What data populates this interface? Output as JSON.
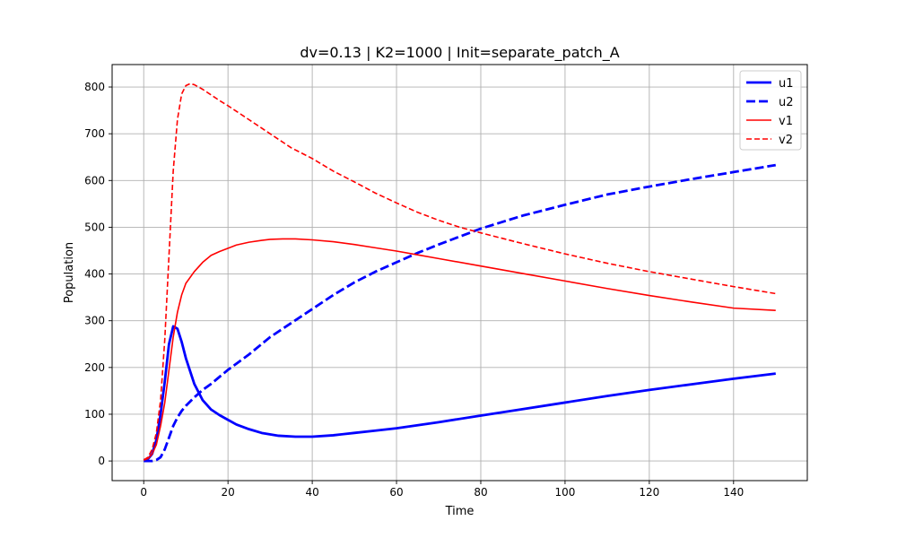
{
  "chart_data": {
    "type": "line",
    "title": "dv=0.13 | K2=1000 | Init=separate_patch_A",
    "xlabel": "Time",
    "ylabel": "Population",
    "xlim": [
      -7.5,
      157.5
    ],
    "ylim": [
      -42,
      848
    ],
    "xticks": [
      0,
      20,
      40,
      60,
      80,
      100,
      120,
      140
    ],
    "yticks": [
      0,
      100,
      200,
      300,
      400,
      500,
      600,
      700,
      800
    ],
    "grid": true,
    "legend_position": "top-right",
    "series": [
      {
        "name": "u1",
        "color": "#0000ff",
        "linestyle": "solid",
        "linewidth": "thick",
        "points": [
          [
            0,
            2
          ],
          [
            1,
            4
          ],
          [
            2,
            15
          ],
          [
            3,
            45
          ],
          [
            4,
            100
          ],
          [
            5,
            170
          ],
          [
            6,
            250
          ],
          [
            7,
            288
          ],
          [
            8,
            283
          ],
          [
            9,
            255
          ],
          [
            10,
            220
          ],
          [
            12,
            165
          ],
          [
            14,
            130
          ],
          [
            16,
            110
          ],
          [
            18,
            98
          ],
          [
            20,
            88
          ],
          [
            22,
            78
          ],
          [
            25,
            68
          ],
          [
            28,
            60
          ],
          [
            32,
            54
          ],
          [
            36,
            52
          ],
          [
            40,
            52
          ],
          [
            45,
            55
          ],
          [
            50,
            60
          ],
          [
            55,
            65
          ],
          [
            60,
            70
          ],
          [
            70,
            83
          ],
          [
            80,
            97
          ],
          [
            90,
            111
          ],
          [
            100,
            125
          ],
          [
            110,
            139
          ],
          [
            120,
            152
          ],
          [
            130,
            164
          ],
          [
            140,
            176
          ],
          [
            150,
            187
          ]
        ]
      },
      {
        "name": "u2",
        "color": "#0000ff",
        "linestyle": "dashed",
        "linewidth": "thick",
        "points": [
          [
            0,
            0
          ],
          [
            2,
            0
          ],
          [
            3,
            2
          ],
          [
            4,
            8
          ],
          [
            5,
            25
          ],
          [
            6,
            50
          ],
          [
            7,
            75
          ],
          [
            8,
            93
          ],
          [
            9,
            107
          ],
          [
            10,
            118
          ],
          [
            12,
            136
          ],
          [
            14,
            152
          ],
          [
            16,
            165
          ],
          [
            18,
            180
          ],
          [
            20,
            195
          ],
          [
            25,
            228
          ],
          [
            30,
            265
          ],
          [
            35,
            295
          ],
          [
            40,
            325
          ],
          [
            45,
            355
          ],
          [
            50,
            382
          ],
          [
            55,
            405
          ],
          [
            60,
            425
          ],
          [
            65,
            445
          ],
          [
            70,
            463
          ],
          [
            75,
            480
          ],
          [
            80,
            497
          ],
          [
            90,
            525
          ],
          [
            100,
            548
          ],
          [
            110,
            570
          ],
          [
            120,
            587
          ],
          [
            130,
            603
          ],
          [
            140,
            618
          ],
          [
            150,
            633
          ]
        ]
      },
      {
        "name": "v1",
        "color": "#ff0000",
        "linestyle": "solid",
        "linewidth": "thin",
        "points": [
          [
            0,
            2
          ],
          [
            1,
            5
          ],
          [
            2,
            15
          ],
          [
            3,
            35
          ],
          [
            4,
            75
          ],
          [
            5,
            125
          ],
          [
            6,
            195
          ],
          [
            7,
            265
          ],
          [
            8,
            318
          ],
          [
            9,
            355
          ],
          [
            10,
            380
          ],
          [
            12,
            405
          ],
          [
            14,
            425
          ],
          [
            16,
            440
          ],
          [
            18,
            448
          ],
          [
            20,
            455
          ],
          [
            22,
            462
          ],
          [
            25,
            468
          ],
          [
            28,
            472
          ],
          [
            30,
            474
          ],
          [
            33,
            475
          ],
          [
            36,
            475
          ],
          [
            40,
            473
          ],
          [
            45,
            469
          ],
          [
            50,
            463
          ],
          [
            55,
            456
          ],
          [
            60,
            449
          ],
          [
            65,
            441
          ],
          [
            70,
            433
          ],
          [
            80,
            417
          ],
          [
            90,
            401
          ],
          [
            100,
            385
          ],
          [
            110,
            369
          ],
          [
            120,
            354
          ],
          [
            130,
            340
          ],
          [
            140,
            327
          ],
          [
            150,
            322
          ]
        ]
      },
      {
        "name": "v2",
        "color": "#ff0000",
        "linestyle": "dashed",
        "linewidth": "thin",
        "points": [
          [
            0,
            2
          ],
          [
            1,
            8
          ],
          [
            2,
            25
          ],
          [
            3,
            60
          ],
          [
            4,
            130
          ],
          [
            5,
            260
          ],
          [
            6,
            440
          ],
          [
            7,
            620
          ],
          [
            8,
            730
          ],
          [
            9,
            785
          ],
          [
            10,
            803
          ],
          [
            11,
            807
          ],
          [
            12,
            805
          ],
          [
            14,
            795
          ],
          [
            16,
            783
          ],
          [
            18,
            771
          ],
          [
            20,
            760
          ],
          [
            25,
            730
          ],
          [
            30,
            700
          ],
          [
            35,
            670
          ],
          [
            40,
            647
          ],
          [
            45,
            620
          ],
          [
            50,
            597
          ],
          [
            55,
            573
          ],
          [
            60,
            552
          ],
          [
            65,
            532
          ],
          [
            70,
            515
          ],
          [
            75,
            500
          ],
          [
            80,
            488
          ],
          [
            90,
            465
          ],
          [
            100,
            443
          ],
          [
            110,
            423
          ],
          [
            120,
            405
          ],
          [
            130,
            389
          ],
          [
            140,
            373
          ],
          [
            150,
            358
          ]
        ]
      }
    ]
  }
}
